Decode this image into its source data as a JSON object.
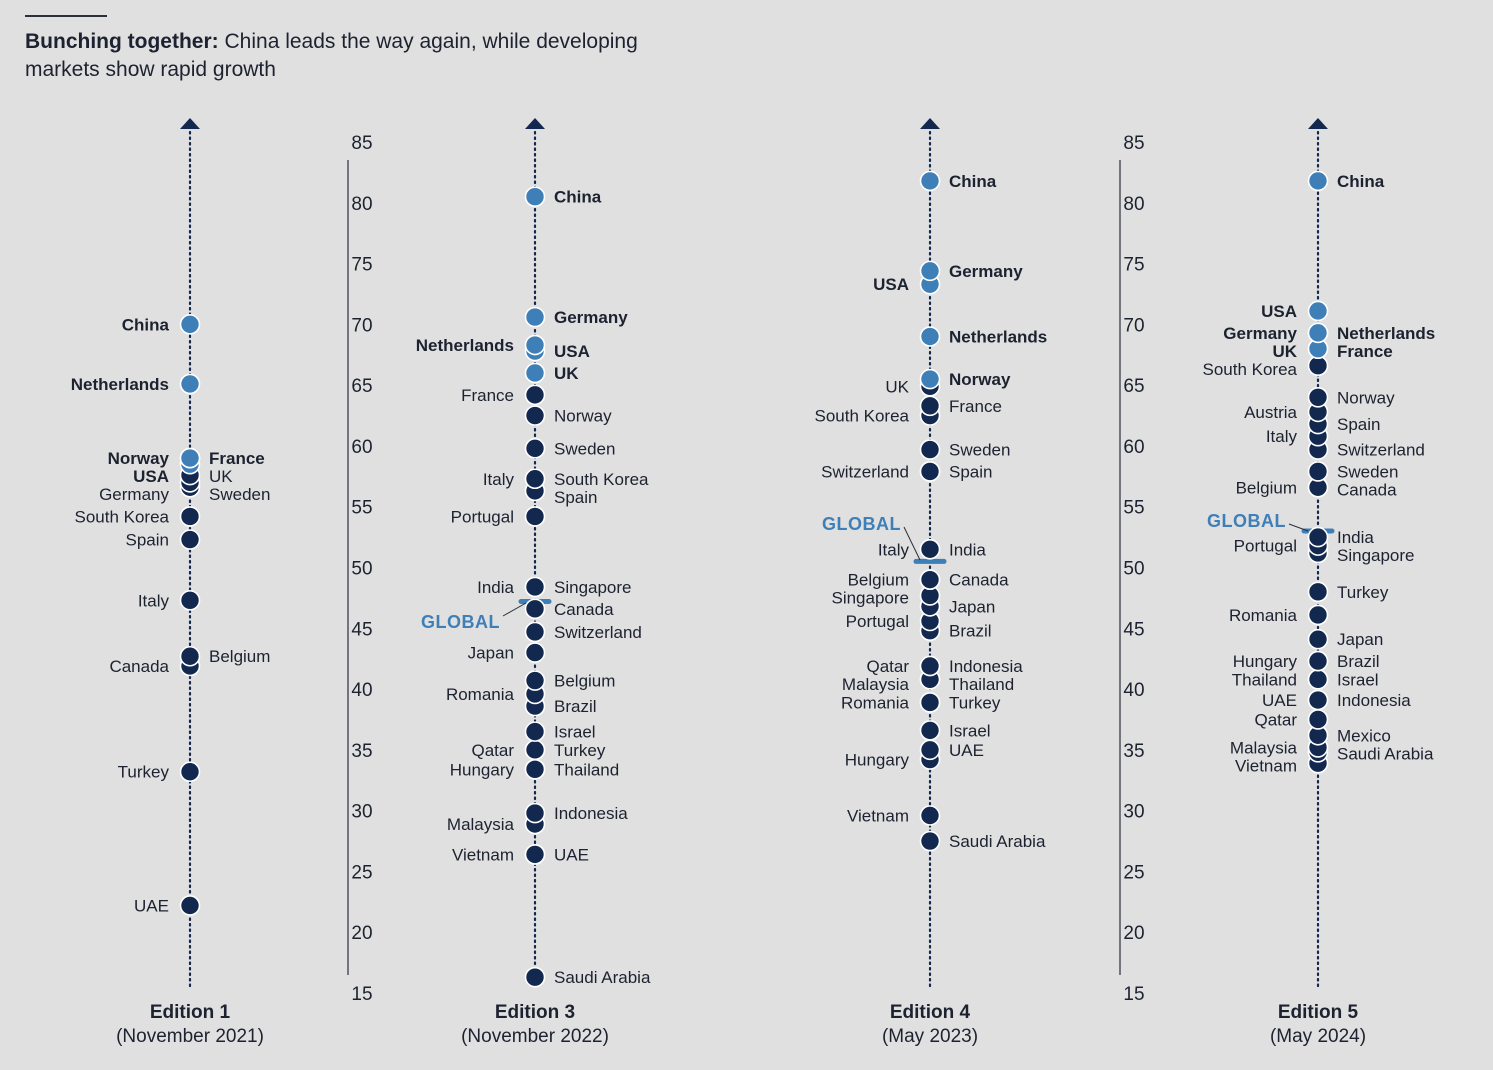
{
  "title": {
    "bold": "Bunching together:",
    "rest": "China leads the way again, while developing markets show rapid growth"
  },
  "colors": {
    "background": "#e0e0e0",
    "dark_dot": "#13284f",
    "light_dot": "#3f7fb8",
    "text": "#1d2230",
    "global": "#3f7fb8"
  },
  "axis": {
    "ticks": [
      85,
      80,
      75,
      70,
      65,
      60,
      55,
      50,
      45,
      40,
      35,
      30,
      25,
      20,
      15
    ]
  },
  "chart_data": {
    "type": "scatter",
    "title": "Bunching together: China leads the way again, while developing markets show rapid growth",
    "ylim": [
      15,
      85
    ],
    "global_label": "GLOBAL",
    "editions": [
      {
        "name": "Edition 1",
        "date": "(November 2021)",
        "points": [
          {
            "label": "China",
            "value": 70.0,
            "side": "left",
            "bold": true,
            "highlight": true
          },
          {
            "label": "Netherlands",
            "value": 65.1,
            "side": "left",
            "bold": true,
            "highlight": true
          },
          {
            "label": "France",
            "value": 59.0,
            "side": "right",
            "bold": true,
            "highlight": true
          },
          {
            "label": "Norway",
            "value": 59.0,
            "side": "left",
            "bold": true,
            "highlight": true
          },
          {
            "label": "USA",
            "value": 58.5,
            "side": "left",
            "bold": true,
            "highlight": true
          },
          {
            "label": "UK",
            "value": 57.6,
            "side": "right",
            "bold": false,
            "highlight": false
          },
          {
            "label": "Sweden",
            "value": 57.0,
            "side": "right",
            "bold": false,
            "highlight": false
          },
          {
            "label": "Germany",
            "value": 56.6,
            "side": "left",
            "bold": false,
            "highlight": false
          },
          {
            "label": "South Korea",
            "value": 54.2,
            "side": "left",
            "bold": false,
            "highlight": false
          },
          {
            "label": "Spain",
            "value": 52.3,
            "side": "left",
            "bold": false,
            "highlight": false
          },
          {
            "label": "Italy",
            "value": 47.3,
            "side": "left",
            "bold": false,
            "highlight": false
          },
          {
            "label": "Belgium",
            "value": 42.7,
            "side": "right",
            "bold": false,
            "highlight": false
          },
          {
            "label": "Canada",
            "value": 41.9,
            "side": "left",
            "bold": false,
            "highlight": false
          },
          {
            "label": "Turkey",
            "value": 33.2,
            "side": "left",
            "bold": false,
            "highlight": false
          },
          {
            "label": "UAE",
            "value": 22.2,
            "side": "left",
            "bold": false,
            "highlight": false
          }
        ]
      },
      {
        "name": "Edition 3",
        "date": "(November 2022)",
        "global": 47.2,
        "points": [
          {
            "label": "China",
            "value": 80.5,
            "side": "right",
            "bold": true,
            "highlight": true
          },
          {
            "label": "Germany",
            "value": 70.6,
            "side": "right",
            "bold": true,
            "highlight": true
          },
          {
            "label": "Netherlands",
            "value": 68.3,
            "side": "left",
            "bold": true,
            "highlight": true
          },
          {
            "label": "USA",
            "value": 67.8,
            "side": "right",
            "bold": true,
            "highlight": true
          },
          {
            "label": "UK",
            "value": 66.0,
            "side": "right",
            "bold": true,
            "highlight": true
          },
          {
            "label": "France",
            "value": 64.2,
            "side": "left",
            "bold": false,
            "highlight": false
          },
          {
            "label": "Norway",
            "value": 62.5,
            "side": "right",
            "bold": false,
            "highlight": false
          },
          {
            "label": "Sweden",
            "value": 59.8,
            "side": "right",
            "bold": false,
            "highlight": false
          },
          {
            "label": "Italy",
            "value": 57.3,
            "side": "left",
            "bold": false,
            "highlight": false
          },
          {
            "label": "South Korea",
            "value": 57.3,
            "side": "right",
            "bold": false,
            "highlight": false
          },
          {
            "label": "Spain",
            "value": 56.3,
            "side": "right",
            "bold": false,
            "highlight": false
          },
          {
            "label": "Portugal",
            "value": 54.2,
            "side": "left",
            "bold": false,
            "highlight": false
          },
          {
            "label": "India",
            "value": 48.4,
            "side": "left",
            "bold": false,
            "highlight": false
          },
          {
            "label": "Singapore",
            "value": 48.4,
            "side": "right",
            "bold": false,
            "highlight": false
          },
          {
            "label": "Canada",
            "value": 46.6,
            "side": "right",
            "bold": false,
            "highlight": false
          },
          {
            "label": "Switzerland",
            "value": 44.7,
            "side": "right",
            "bold": false,
            "highlight": false
          },
          {
            "label": "Japan",
            "value": 43.0,
            "side": "left",
            "bold": false,
            "highlight": false
          },
          {
            "label": "Belgium",
            "value": 40.7,
            "side": "right",
            "bold": false,
            "highlight": false
          },
          {
            "label": "Romania",
            "value": 39.6,
            "side": "left",
            "bold": false,
            "highlight": false
          },
          {
            "label": "Brazil",
            "value": 38.6,
            "side": "right",
            "bold": false,
            "highlight": false
          },
          {
            "label": "Israel",
            "value": 36.5,
            "side": "right",
            "bold": false,
            "highlight": false
          },
          {
            "label": "Qatar",
            "value": 35.0,
            "side": "left",
            "bold": false,
            "highlight": false
          },
          {
            "label": "Turkey",
            "value": 35.0,
            "side": "right",
            "bold": false,
            "highlight": false
          },
          {
            "label": "Hungary",
            "value": 33.4,
            "side": "left",
            "bold": false,
            "highlight": false
          },
          {
            "label": "Thailand",
            "value": 33.4,
            "side": "right",
            "bold": false,
            "highlight": false
          },
          {
            "label": "Indonesia",
            "value": 29.8,
            "side": "right",
            "bold": false,
            "highlight": false
          },
          {
            "label": "Malaysia",
            "value": 28.9,
            "side": "left",
            "bold": false,
            "highlight": false
          },
          {
            "label": "Vietnam",
            "value": 26.4,
            "side": "left",
            "bold": false,
            "highlight": false
          },
          {
            "label": "UAE",
            "value": 26.4,
            "side": "right",
            "bold": false,
            "highlight": false
          },
          {
            "label": "Saudi Arabia",
            "value": 16.3,
            "side": "right",
            "bold": false,
            "highlight": false
          }
        ]
      },
      {
        "name": "Edition 4",
        "date": "(May 2023)",
        "global": 50.5,
        "points": [
          {
            "label": "China",
            "value": 81.8,
            "side": "right",
            "bold": true,
            "highlight": true
          },
          {
            "label": "Germany",
            "value": 74.4,
            "side": "right",
            "bold": true,
            "highlight": true
          },
          {
            "label": "USA",
            "value": 73.3,
            "side": "left",
            "bold": true,
            "highlight": true
          },
          {
            "label": "Netherlands",
            "value": 69.0,
            "side": "right",
            "bold": true,
            "highlight": true
          },
          {
            "label": "Norway",
            "value": 65.5,
            "side": "right",
            "bold": true,
            "highlight": true
          },
          {
            "label": "UK",
            "value": 64.9,
            "side": "left",
            "bold": false,
            "highlight": false
          },
          {
            "label": "France",
            "value": 63.3,
            "side": "right",
            "bold": false,
            "highlight": false
          },
          {
            "label": "South Korea",
            "value": 62.5,
            "side": "left",
            "bold": false,
            "highlight": false
          },
          {
            "label": "Sweden",
            "value": 59.7,
            "side": "right",
            "bold": false,
            "highlight": false
          },
          {
            "label": "Spain",
            "value": 57.9,
            "side": "right",
            "bold": false,
            "highlight": false
          },
          {
            "label": "Switzerland",
            "value": 57.9,
            "side": "left",
            "bold": false,
            "highlight": false
          },
          {
            "label": "Italy",
            "value": 51.5,
            "side": "left",
            "bold": false,
            "highlight": false
          },
          {
            "label": "India",
            "value": 51.5,
            "side": "right",
            "bold": false,
            "highlight": false
          },
          {
            "label": "Belgium",
            "value": 49.0,
            "side": "left",
            "bold": false,
            "highlight": false
          },
          {
            "label": "Canada",
            "value": 49.0,
            "side": "right",
            "bold": false,
            "highlight": false
          },
          {
            "label": "Singapore",
            "value": 47.7,
            "side": "left",
            "bold": false,
            "highlight": false
          },
          {
            "label": "Japan",
            "value": 46.8,
            "side": "right",
            "bold": false,
            "highlight": false
          },
          {
            "label": "Portugal",
            "value": 45.6,
            "side": "left",
            "bold": false,
            "highlight": false
          },
          {
            "label": "Brazil",
            "value": 44.8,
            "side": "right",
            "bold": false,
            "highlight": false
          },
          {
            "label": "Qatar",
            "value": 41.9,
            "side": "left",
            "bold": false,
            "highlight": false
          },
          {
            "label": "Indonesia",
            "value": 41.9,
            "side": "right",
            "bold": false,
            "highlight": false
          },
          {
            "label": "Malaysia",
            "value": 40.8,
            "side": "left",
            "bold": false,
            "highlight": false
          },
          {
            "label": "Thailand",
            "value": 40.8,
            "side": "right",
            "bold": false,
            "highlight": false
          },
          {
            "label": "Romania",
            "value": 38.9,
            "side": "left",
            "bold": false,
            "highlight": false
          },
          {
            "label": "Turkey",
            "value": 38.9,
            "side": "right",
            "bold": false,
            "highlight": false
          },
          {
            "label": "Israel",
            "value": 36.6,
            "side": "right",
            "bold": false,
            "highlight": false
          },
          {
            "label": "UAE",
            "value": 35.0,
            "side": "right",
            "bold": false,
            "highlight": false
          },
          {
            "label": "Hungary",
            "value": 34.2,
            "side": "left",
            "bold": false,
            "highlight": false
          },
          {
            "label": "Vietnam",
            "value": 29.6,
            "side": "left",
            "bold": false,
            "highlight": false
          },
          {
            "label": "Saudi Arabia",
            "value": 27.5,
            "side": "right",
            "bold": false,
            "highlight": false
          }
        ]
      },
      {
        "name": "Edition 5",
        "date": "(May 2024)",
        "global": 53.0,
        "points": [
          {
            "label": "China",
            "value": 81.8,
            "side": "right",
            "bold": true,
            "highlight": true
          },
          {
            "label": "USA",
            "value": 71.1,
            "side": "left",
            "bold": true,
            "highlight": true
          },
          {
            "label": "Germany",
            "value": 69.3,
            "side": "left",
            "bold": true,
            "highlight": true
          },
          {
            "label": "Netherlands",
            "value": 69.3,
            "side": "right",
            "bold": true,
            "highlight": true
          },
          {
            "label": "UK",
            "value": 68.0,
            "side": "left",
            "bold": true,
            "highlight": true
          },
          {
            "label": "France",
            "value": 68.0,
            "side": "right",
            "bold": true,
            "highlight": true
          },
          {
            "label": "South Korea",
            "value": 66.6,
            "side": "left",
            "bold": false,
            "highlight": false
          },
          {
            "label": "Norway",
            "value": 64.0,
            "side": "right",
            "bold": false,
            "highlight": false
          },
          {
            "label": "Austria",
            "value": 62.8,
            "side": "left",
            "bold": false,
            "highlight": false
          },
          {
            "label": "Spain",
            "value": 61.8,
            "side": "right",
            "bold": false,
            "highlight": false
          },
          {
            "label": "Italy",
            "value": 60.8,
            "side": "left",
            "bold": false,
            "highlight": false
          },
          {
            "label": "Switzerland",
            "value": 59.7,
            "side": "right",
            "bold": false,
            "highlight": false
          },
          {
            "label": "Sweden",
            "value": 57.9,
            "side": "right",
            "bold": false,
            "highlight": false
          },
          {
            "label": "Belgium",
            "value": 56.6,
            "side": "left",
            "bold": false,
            "highlight": false
          },
          {
            "label": "Canada",
            "value": 56.6,
            "side": "right",
            "bold": false,
            "highlight": false
          },
          {
            "label": "India",
            "value": 52.5,
            "side": "right",
            "bold": false,
            "highlight": false
          },
          {
            "label": "Portugal",
            "value": 51.8,
            "side": "left",
            "bold": false,
            "highlight": false
          },
          {
            "label": "Singapore",
            "value": 51.2,
            "side": "right",
            "bold": false,
            "highlight": false
          },
          {
            "label": "Turkey",
            "value": 48.0,
            "side": "right",
            "bold": false,
            "highlight": false
          },
          {
            "label": "Romania",
            "value": 46.1,
            "side": "left",
            "bold": false,
            "highlight": false
          },
          {
            "label": "Japan",
            "value": 44.1,
            "side": "right",
            "bold": false,
            "highlight": false
          },
          {
            "label": "Hungary",
            "value": 42.3,
            "side": "left",
            "bold": false,
            "highlight": false
          },
          {
            "label": "Brazil",
            "value": 42.3,
            "side": "right",
            "bold": false,
            "highlight": false
          },
          {
            "label": "Thailand",
            "value": 40.8,
            "side": "left",
            "bold": false,
            "highlight": false
          },
          {
            "label": "Israel",
            "value": 40.8,
            "side": "right",
            "bold": false,
            "highlight": false
          },
          {
            "label": "Indonesia",
            "value": 39.1,
            "side": "right",
            "bold": false,
            "highlight": false
          },
          {
            "label": "UAE",
            "value": 39.1,
            "side": "left",
            "bold": false,
            "highlight": false
          },
          {
            "label": "Qatar",
            "value": 37.5,
            "side": "left",
            "bold": false,
            "highlight": false
          },
          {
            "label": "Mexico",
            "value": 36.2,
            "side": "right",
            "bold": false,
            "highlight": false
          },
          {
            "label": "Malaysia",
            "value": 35.2,
            "side": "left",
            "bold": false,
            "highlight": false
          },
          {
            "label": "Saudi Arabia",
            "value": 34.8,
            "side": "right",
            "bold": false,
            "highlight": false
          },
          {
            "label": "Vietnam",
            "value": 33.9,
            "side": "left",
            "bold": false,
            "highlight": false
          }
        ]
      }
    ]
  }
}
